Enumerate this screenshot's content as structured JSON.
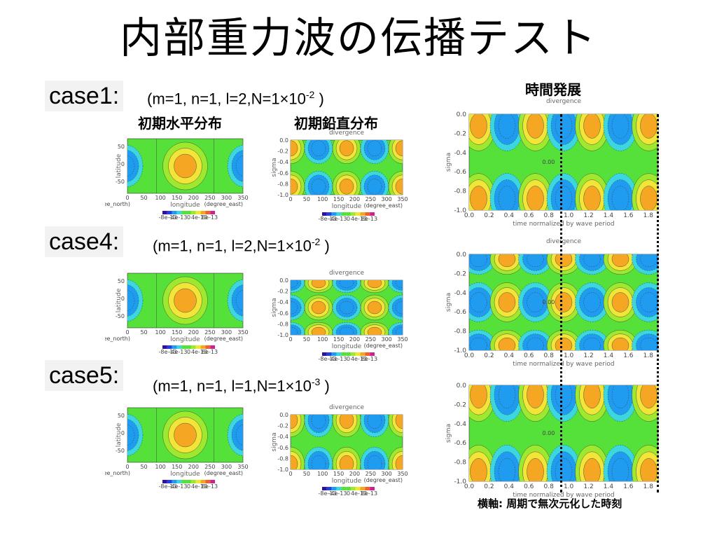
{
  "title": "内部重力波の伝播テスト",
  "cases": [
    {
      "label": "case1:",
      "params_main": "(m=1, n=1, l=2,N=1×10",
      "params_exp": "-2",
      "params_end": ")"
    },
    {
      "label": "case4:",
      "params_main": "(m=1, n=1, l=2,N=1×10",
      "params_exp": "-2",
      "params_end": ")"
    },
    {
      "label": "case5:",
      "params_main": "(m=1, n=1, l=1,N=1×10",
      "params_exp": "-3",
      "params_end": ")"
    }
  ],
  "headers": {
    "horizontal": "初期水平分布",
    "vertical": "初期鉛直分布",
    "time_evolution": "時間発展"
  },
  "plot_text": {
    "divergence": "divergence",
    "longitude": "longitude",
    "latitude": "latitude",
    "sigma": "sigma",
    "degree_north": "(degree_north)",
    "degree_east": "(degree_east)",
    "time_xlabel": "time normalized by wave period",
    "contour_zero": "0.00",
    "colorbar_ticks": [
      "-8e-13",
      "-4e-13",
      "0",
      "4e-13",
      "8e-13"
    ]
  },
  "ticks": {
    "lon": [
      "0",
      "50",
      "100",
      "150",
      "200",
      "250",
      "300",
      "350"
    ],
    "lat": [
      "50",
      "0",
      "-50"
    ],
    "sigma": [
      "0.0",
      "-0.2",
      "-0.4",
      "-0.6",
      "-0.8",
      "-1.0"
    ],
    "time": [
      "0.0",
      "0.2",
      "0.4",
      "0.6",
      "0.8",
      "1.0",
      "1.2",
      "1.4",
      "1.6",
      "1.8"
    ]
  },
  "bottom_note": "横軸: 周期で無次元化した時刻",
  "colors": {
    "blue": "#1f9cf0",
    "cyan": "#3cd6e0",
    "green": "#55e03a",
    "lightgreen": "#9ee830",
    "yellow": "#f2e53a",
    "orange": "#f5a623"
  }
}
